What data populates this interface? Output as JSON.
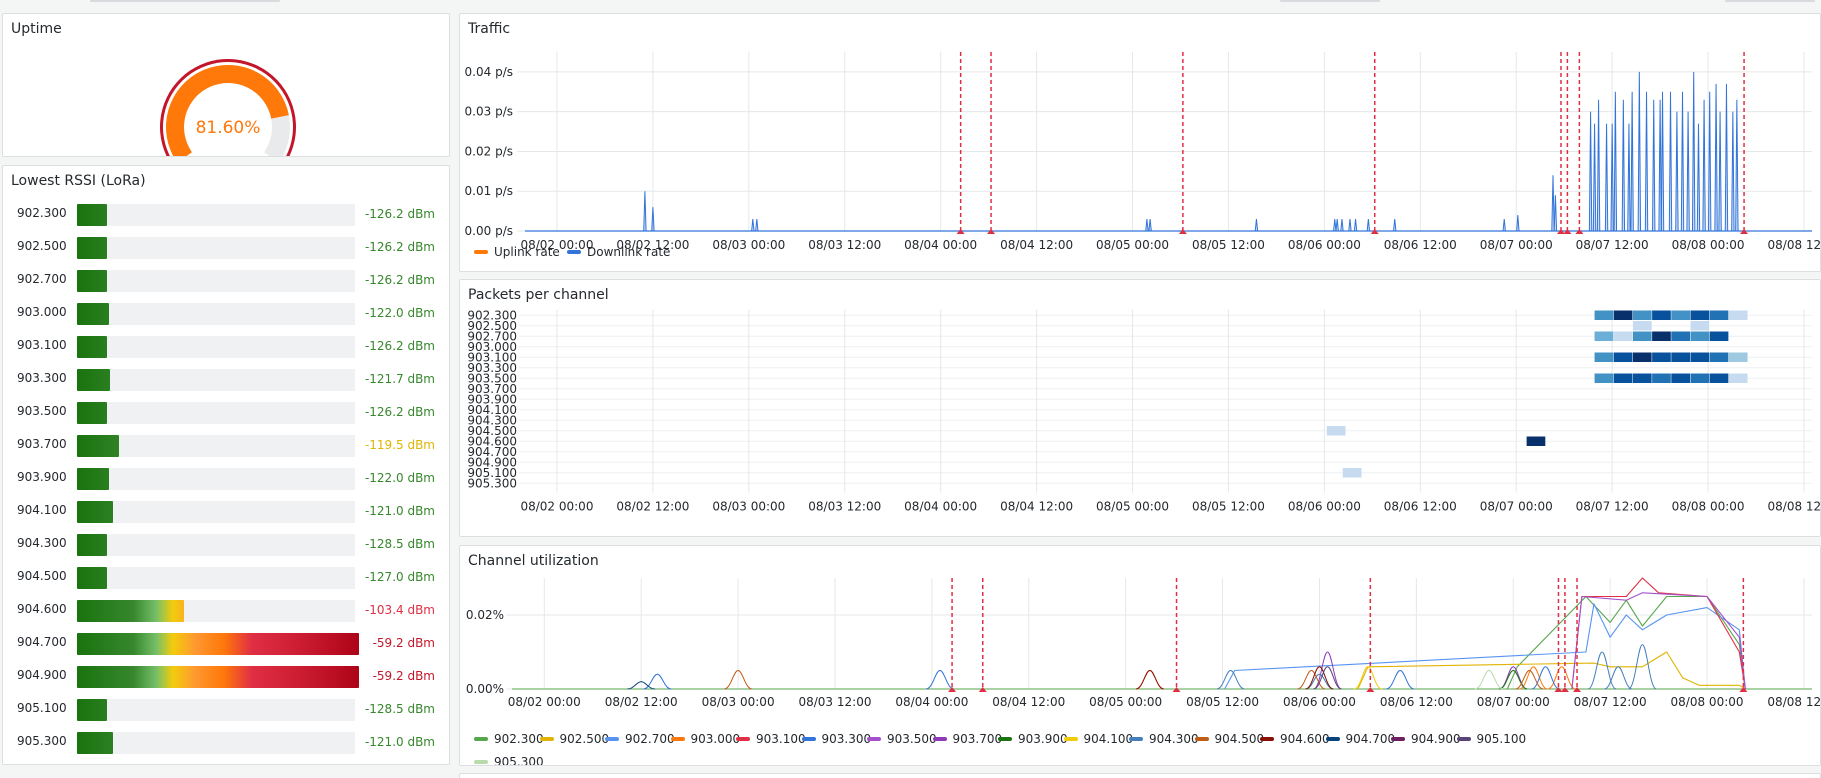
{
  "colors": {
    "uplink": "#ff780a",
    "downlink": "#3274d9",
    "annotation": "#e02f44",
    "rssi_good": "#37872d",
    "rssi_warn": "#e0b400",
    "rssi_bad": "#c4162a"
  },
  "uptime": {
    "title": "Uptime",
    "value_text": "81.60%",
    "percent": 81.6
  },
  "rssi": {
    "title": "Lowest RSSI (LoRa)",
    "min": -130,
    "max": -60,
    "rows": [
      {
        "label": "902.300",
        "value": -126.2,
        "value_text": "-126.2 dBm"
      },
      {
        "label": "902.500",
        "value": -126.2,
        "value_text": "-126.2 dBm"
      },
      {
        "label": "902.700",
        "value": -126.2,
        "value_text": "-126.2 dBm"
      },
      {
        "label": "903.000",
        "value": -122.0,
        "value_text": "-122.0 dBm"
      },
      {
        "label": "903.100",
        "value": -126.2,
        "value_text": "-126.2 dBm"
      },
      {
        "label": "903.300",
        "value": -121.7,
        "value_text": "-121.7 dBm"
      },
      {
        "label": "903.500",
        "value": -126.2,
        "value_text": "-126.2 dBm"
      },
      {
        "label": "903.700",
        "value": -119.5,
        "value_text": "-119.5 dBm"
      },
      {
        "label": "903.900",
        "value": -122.0,
        "value_text": "-122.0 dBm"
      },
      {
        "label": "904.100",
        "value": -121.0,
        "value_text": "-121.0 dBm"
      },
      {
        "label": "904.300",
        "value": -128.5,
        "value_text": "-128.5 dBm"
      },
      {
        "label": "904.500",
        "value": -127.0,
        "value_text": "-127.0 dBm"
      },
      {
        "label": "904.600",
        "value": -103.4,
        "value_text": "-103.4 dBm"
      },
      {
        "label": "904.700",
        "value": -59.2,
        "value_text": "-59.2 dBm"
      },
      {
        "label": "904.900",
        "value": -59.2,
        "value_text": "-59.2 dBm"
      },
      {
        "label": "905.100",
        "value": -128.5,
        "value_text": "-128.5 dBm"
      },
      {
        "label": "905.300",
        "value": -121.0,
        "value_text": "-121.0 dBm"
      }
    ]
  },
  "x_ticks": [
    "08/02 00:00",
    "08/02 12:00",
    "08/03 00:00",
    "08/03 12:00",
    "08/04 00:00",
    "08/04 12:00",
    "08/05 00:00",
    "08/05 12:00",
    "08/06 00:00",
    "08/06 12:00",
    "08/07 00:00",
    "08/07 12:00",
    "08/08 00:00",
    "08/08 12:00"
  ],
  "annotations_hours": [
    74.5,
    78.3,
    102.3,
    126.3,
    149.6,
    150.4,
    151.9,
    172.5
  ],
  "traffic": {
    "title": "Traffic",
    "legend": [
      {
        "name": "Uplink rate",
        "color": "#ff780a"
      },
      {
        "name": "Downlink rate",
        "color": "#3274d9"
      }
    ]
  },
  "packets": {
    "title": "Packets per channel",
    "channels": [
      "902.300",
      "902.500",
      "902.700",
      "903.000",
      "903.100",
      "903.300",
      "903.500",
      "903.700",
      "903.900",
      "904.100",
      "904.300",
      "904.500",
      "904.600",
      "904.700",
      "904.900",
      "905.100",
      "905.300"
    ]
  },
  "utilization": {
    "title": "Channel utilization",
    "legend": [
      {
        "name": "902.300",
        "color": "#56a64b"
      },
      {
        "name": "902.500",
        "color": "#e0b400"
      },
      {
        "name": "902.700",
        "color": "#5794f2"
      },
      {
        "name": "903.000",
        "color": "#ff780a"
      },
      {
        "name": "903.100",
        "color": "#e02f44"
      },
      {
        "name": "903.300",
        "color": "#3274d9"
      },
      {
        "name": "903.500",
        "color": "#a352cc"
      },
      {
        "name": "903.700",
        "color": "#8f3bb8"
      },
      {
        "name": "903.900",
        "color": "#19730e"
      },
      {
        "name": "904.100",
        "color": "#f2cc0c"
      },
      {
        "name": "904.300",
        "color": "#447ebc"
      },
      {
        "name": "904.500",
        "color": "#c15c17"
      },
      {
        "name": "904.600",
        "color": "#890f02"
      },
      {
        "name": "904.700",
        "color": "#0a437c"
      },
      {
        "name": "904.900",
        "color": "#6d1f62"
      },
      {
        "name": "905.100",
        "color": "#584477"
      },
      {
        "name": "905.300",
        "color": "#b7dbab"
      }
    ]
  },
  "chart_data": [
    {
      "type": "line",
      "title": "Traffic",
      "x_range": [
        "08/01 20:00",
        "08/08 13:00"
      ],
      "y_ticks": [
        "0.00 p/s",
        "0.01 p/s",
        "0.02 p/s",
        "0.03 p/s",
        "0.04 p/s"
      ],
      "ylim": [
        0,
        0.045
      ],
      "legend_position": "bottom-left",
      "series": [
        {
          "name": "Uplink rate",
          "color": "#ff780a",
          "points": []
        },
        {
          "name": "Downlink rate",
          "color": "#3274d9",
          "points": [
            [
              35.0,
              0.01
            ],
            [
              36.0,
              0.006
            ],
            [
              48.5,
              0.003
            ],
            [
              49.0,
              0.003
            ],
            [
              97.8,
              0.003
            ],
            [
              98.2,
              0.003
            ],
            [
              111.5,
              0.003
            ],
            [
              121.3,
              0.003
            ],
            [
              121.6,
              0.003
            ],
            [
              122.2,
              0.003
            ],
            [
              123.2,
              0.003
            ],
            [
              123.9,
              0.003
            ],
            [
              125.5,
              0.003
            ],
            [
              128.8,
              0.003
            ],
            [
              142.5,
              0.003
            ],
            [
              144.2,
              0.004
            ],
            [
              148.6,
              0.014
            ],
            [
              148.9,
              0.009
            ],
            [
              153.3,
              0.03
            ],
            [
              153.8,
              0.027
            ],
            [
              154.3,
              0.033
            ],
            [
              155.3,
              0.027
            ],
            [
              156.0,
              0.027
            ],
            [
              156.4,
              0.035
            ],
            [
              157.4,
              0.033
            ],
            [
              158.1,
              0.027
            ],
            [
              158.5,
              0.035
            ],
            [
              159.4,
              0.04
            ],
            [
              160.3,
              0.035
            ],
            [
              161.2,
              0.033
            ],
            [
              162.0,
              0.033
            ],
            [
              162.3,
              0.035
            ],
            [
              163.3,
              0.035
            ],
            [
              164.1,
              0.03
            ],
            [
              164.8,
              0.035
            ],
            [
              165.5,
              0.03
            ],
            [
              166.2,
              0.04
            ],
            [
              166.8,
              0.027
            ],
            [
              167.5,
              0.033
            ],
            [
              168.2,
              0.035
            ],
            [
              169.0,
              0.037
            ],
            [
              169.5,
              0.03
            ],
            [
              170.3,
              0.037
            ],
            [
              171.1,
              0.03
            ],
            [
              171.6,
              0.033
            ]
          ]
        }
      ]
    },
    {
      "type": "heatmap",
      "title": "Packets per channel",
      "y_categories": [
        "902.300",
        "902.500",
        "902.700",
        "903.000",
        "903.100",
        "903.300",
        "903.500",
        "903.700",
        "903.900",
        "904.100",
        "904.300",
        "904.500",
        "904.600",
        "904.700",
        "904.900",
        "905.100",
        "905.300"
      ],
      "scale": [
        0,
        10
      ],
      "cells": [
        {
          "h": 155.0,
          "ch": "902.300",
          "v": 5
        },
        {
          "h": 157.4,
          "ch": "902.300",
          "v": 10
        },
        {
          "h": 159.8,
          "ch": "902.300",
          "v": 6
        },
        {
          "h": 162.2,
          "ch": "902.300",
          "v": 8
        },
        {
          "h": 164.6,
          "ch": "902.300",
          "v": 6
        },
        {
          "h": 167.0,
          "ch": "902.300",
          "v": 9
        },
        {
          "h": 169.4,
          "ch": "902.300",
          "v": 7
        },
        {
          "h": 171.8,
          "ch": "902.300",
          "v": 1
        },
        {
          "h": 159.8,
          "ch": "902.500",
          "v": 1
        },
        {
          "h": 167.0,
          "ch": "902.500",
          "v": 1
        },
        {
          "h": 155.0,
          "ch": "902.700",
          "v": 4
        },
        {
          "h": 157.4,
          "ch": "902.700",
          "v": 2
        },
        {
          "h": 159.8,
          "ch": "902.700",
          "v": 6
        },
        {
          "h": 162.2,
          "ch": "902.700",
          "v": 10
        },
        {
          "h": 164.6,
          "ch": "902.700",
          "v": 7
        },
        {
          "h": 167.0,
          "ch": "902.700",
          "v": 6
        },
        {
          "h": 169.4,
          "ch": "902.700",
          "v": 8
        },
        {
          "h": 155.0,
          "ch": "903.100",
          "v": 5
        },
        {
          "h": 157.4,
          "ch": "903.100",
          "v": 8
        },
        {
          "h": 159.8,
          "ch": "903.100",
          "v": 10
        },
        {
          "h": 162.2,
          "ch": "903.100",
          "v": 8
        },
        {
          "h": 164.6,
          "ch": "903.100",
          "v": 9
        },
        {
          "h": 167.0,
          "ch": "903.100",
          "v": 8
        },
        {
          "h": 169.4,
          "ch": "903.100",
          "v": 7
        },
        {
          "h": 171.8,
          "ch": "903.100",
          "v": 3
        },
        {
          "h": 155.0,
          "ch": "903.500",
          "v": 5
        },
        {
          "h": 157.4,
          "ch": "903.500",
          "v": 8
        },
        {
          "h": 159.8,
          "ch": "903.500",
          "v": 8
        },
        {
          "h": 162.2,
          "ch": "903.500",
          "v": 7
        },
        {
          "h": 164.6,
          "ch": "903.500",
          "v": 8
        },
        {
          "h": 167.0,
          "ch": "903.500",
          "v": 7
        },
        {
          "h": 169.4,
          "ch": "903.500",
          "v": 9
        },
        {
          "h": 171.8,
          "ch": "903.500",
          "v": 1
        },
        {
          "h": 121.5,
          "ch": "904.500",
          "v": 2
        },
        {
          "h": 146.5,
          "ch": "904.600",
          "v": 10
        },
        {
          "h": 123.5,
          "ch": "905.100",
          "v": 2
        }
      ]
    },
    {
      "type": "line",
      "title": "Channel utilization",
      "y_ticks": [
        "0.00%",
        "0.02%"
      ],
      "ylim": [
        0,
        0.03
      ],
      "legend_position": "bottom-left",
      "series": [
        {
          "name": "902.300",
          "color": "#56a64b",
          "points": [
            [
              144.5,
              0.006
            ],
            [
              153,
              0.025
            ],
            [
              156,
              0.018
            ],
            [
              158,
              0.024
            ],
            [
              160,
              0.017
            ],
            [
              163,
              0.025
            ],
            [
              168,
              0.025
            ],
            [
              172,
              0.012
            ]
          ]
        },
        {
          "name": "902.500",
          "color": "#e0b400",
          "points": [
            [
              126,
              0.006
            ],
            [
              154,
              0.007
            ],
            [
              156,
              0.006
            ],
            [
              160,
              0.006
            ],
            [
              163,
              0.01
            ],
            [
              165,
              0.003
            ],
            [
              167,
              0.001
            ],
            [
              172,
              0.001
            ]
          ]
        },
        {
          "name": "902.700",
          "color": "#5794f2",
          "points": [
            [
              109.5,
              0.005
            ],
            [
              153,
              0.01
            ],
            [
              154,
              0.023
            ],
            [
              156,
              0.014
            ],
            [
              158,
              0.02
            ],
            [
              160,
              0.016
            ],
            [
              163,
              0.02
            ],
            [
              168,
              0.022
            ],
            [
              172,
              0.016
            ]
          ]
        },
        {
          "name": "903.000",
          "color": "#ff780a",
          "points": [
            [
              99,
              0.005
            ],
            [
              146.5,
              0.006
            ],
            [
              150,
              0.006
            ]
          ]
        },
        {
          "name": "903.100",
          "color": "#e02f44",
          "points": [
            [
              152.5,
              0.025
            ],
            [
              158,
              0.025
            ],
            [
              160,
              0.03
            ],
            [
              162,
              0.026
            ],
            [
              168,
              0.025
            ],
            [
              172,
              0.01
            ]
          ]
        },
        {
          "name": "903.300",
          "color": "#3274d9",
          "points": [
            [
              38,
              0.004
            ],
            [
              73,
              0.005
            ],
            [
              130,
              0.005
            ],
            [
              148,
              0.006
            ]
          ]
        },
        {
          "name": "903.500",
          "color": "#a352cc",
          "points": [
            [
              152.5,
              0.025
            ],
            [
              158,
              0.024
            ],
            [
              160,
              0.026
            ],
            [
              168,
              0.025
            ],
            [
              172,
              0.014
            ]
          ]
        },
        {
          "name": "903.700",
          "color": "#8f3bb8",
          "points": [
            [
              121,
              0.01
            ],
            [
              144,
              0.006
            ]
          ]
        },
        {
          "name": "903.900",
          "color": "#19730e",
          "points": [
            [
              144,
              0.005
            ]
          ]
        },
        {
          "name": "904.100",
          "color": "#f2cc0c",
          "points": [
            [
              126,
              0.006
            ]
          ]
        },
        {
          "name": "904.300",
          "color": "#447ebc",
          "points": [
            [
              109,
              0.005
            ],
            [
              120,
              0.004
            ],
            [
              155,
              0.01
            ],
            [
              157,
              0.006
            ],
            [
              160,
              0.012
            ]
          ]
        },
        {
          "name": "904.500",
          "color": "#c15c17",
          "points": [
            [
              48,
              0.005
            ],
            [
              119,
              0.005
            ],
            [
              146,
              0.005
            ]
          ]
        },
        {
          "name": "904.600",
          "color": "#890f02",
          "points": [
            [
              99,
              0.005
            ],
            [
              120,
              0.006
            ]
          ]
        },
        {
          "name": "904.700",
          "color": "#0a437c",
          "points": [
            [
              36,
              0.002
            ]
          ]
        },
        {
          "name": "904.900",
          "color": "#6d1f62",
          "points": []
        },
        {
          "name": "905.100",
          "color": "#584477",
          "points": [
            [
              121,
              0.006
            ]
          ]
        },
        {
          "name": "905.300",
          "color": "#b7dbab",
          "points": [
            [
              141,
              0.005
            ]
          ]
        }
      ]
    }
  ]
}
